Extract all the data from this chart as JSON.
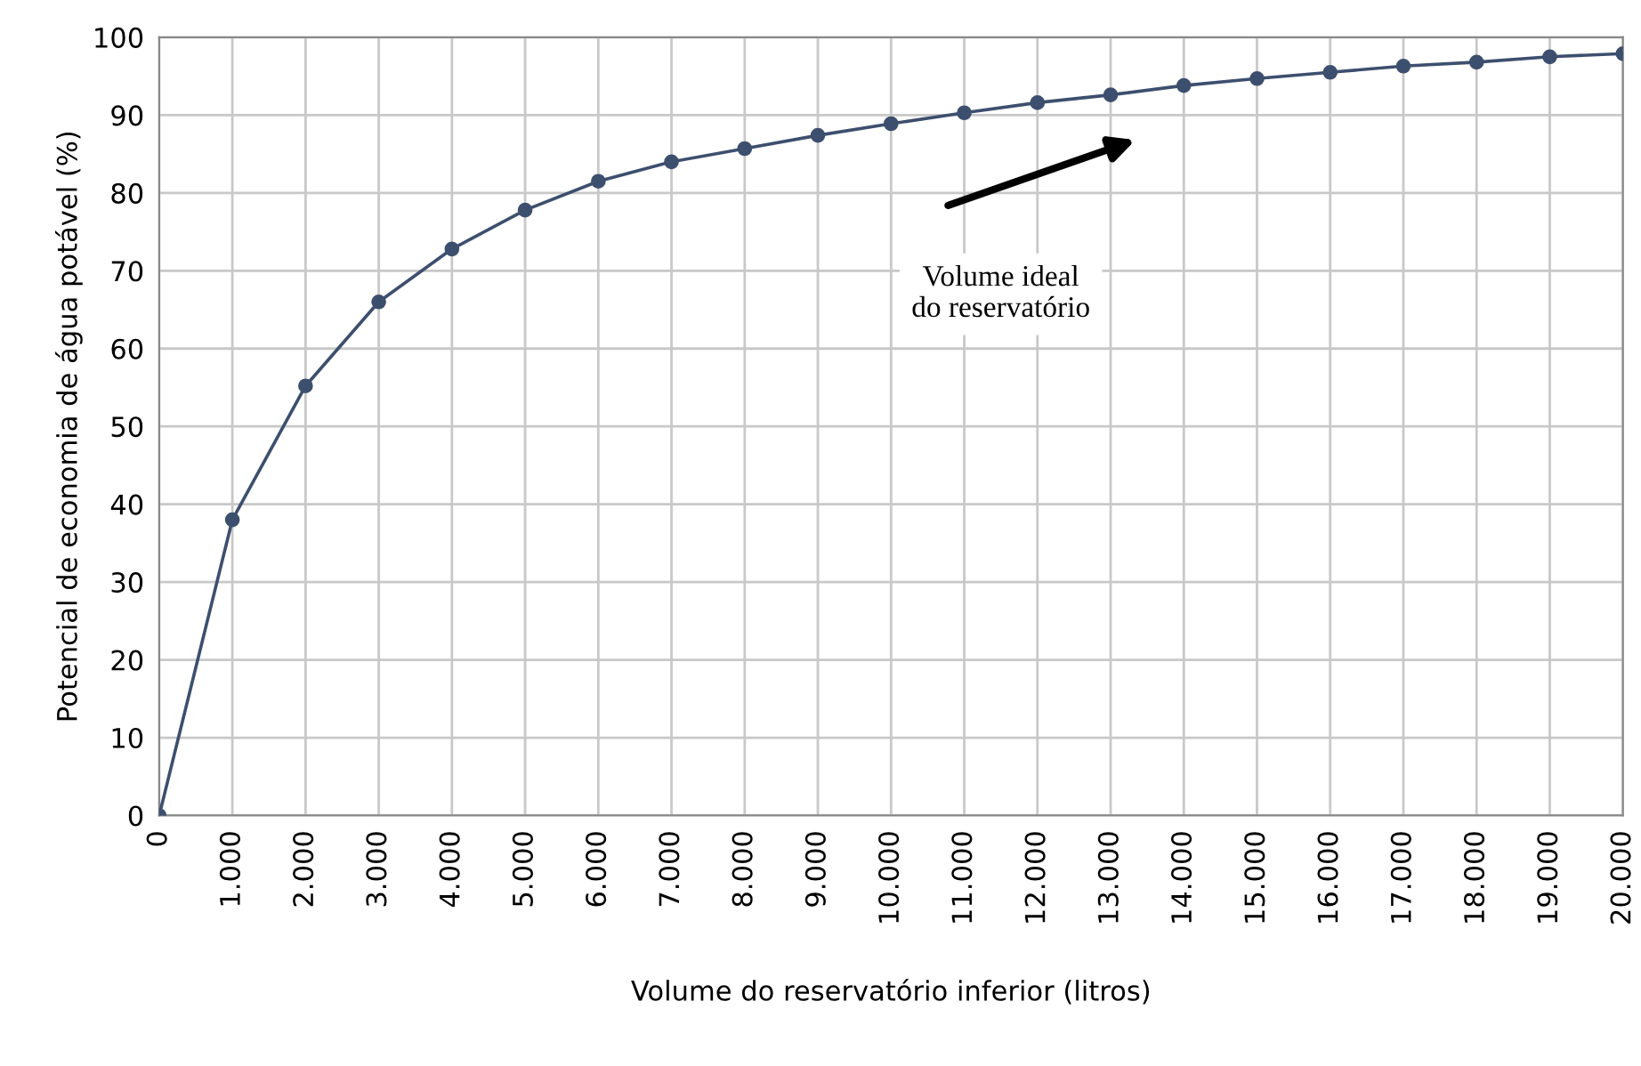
{
  "chart_data": {
    "type": "line",
    "xlabel": "Volume do reservatório inferior (litros)",
    "ylabel": "Potencial de economia de água potável (%)",
    "x": [
      0,
      1000,
      2000,
      3000,
      4000,
      5000,
      6000,
      7000,
      8000,
      9000,
      10000,
      11000,
      12000,
      13000,
      14000,
      15000,
      16000,
      17000,
      18000,
      19000,
      20000
    ],
    "series": [
      {
        "color": "#3d4f6e",
        "values": [
          0,
          38,
          55.2,
          66,
          72.8,
          77.8,
          81.5,
          84,
          85.7,
          87.4,
          88.9,
          90.3,
          91.6,
          92.6,
          93.8,
          94.7,
          95.5,
          96.3,
          96.8,
          97.5,
          97.9
        ]
      }
    ],
    "xlim": [
      0,
      20000
    ],
    "xticks": [
      0,
      {
        "value": 1000,
        "label": "1.000"
      },
      {
        "value": 2000,
        "label": "2.000"
      },
      {
        "value": 3000,
        "label": "3.000"
      },
      {
        "value": 4000,
        "label": "4.000"
      },
      {
        "value": 5000,
        "label": "5.000"
      },
      {
        "value": 6000,
        "label": "6.000"
      },
      {
        "value": 7000,
        "label": "7.000"
      },
      {
        "value": 8000,
        "label": "8.000"
      },
      {
        "value": 9000,
        "label": "9.000"
      },
      {
        "value": 10000,
        "label": "10.000"
      },
      {
        "value": 11000,
        "label": "11.000"
      },
      {
        "value": 12000,
        "label": "12.000"
      },
      {
        "value": 13000,
        "label": "13.000"
      },
      {
        "value": 14000,
        "label": "14.000"
      },
      {
        "value": 15000,
        "label": "15.000"
      },
      {
        "value": 16000,
        "label": "16.000"
      },
      {
        "value": 17000,
        "label": "17.000"
      },
      {
        "value": 18000,
        "label": "18.000"
      },
      {
        "value": 19000,
        "label": "19.000"
      },
      {
        "value": 20000,
        "label": "20.000"
      }
    ],
    "ylim": [
      0,
      100
    ],
    "yticks": [
      0,
      10,
      20,
      30,
      40,
      50,
      60,
      70,
      80,
      90,
      100
    ],
    "annotations": [
      "Volume ideal\ndo reservatório"
    ],
    "grid": true,
    "marker": "circle",
    "line_style": "solid"
  }
}
